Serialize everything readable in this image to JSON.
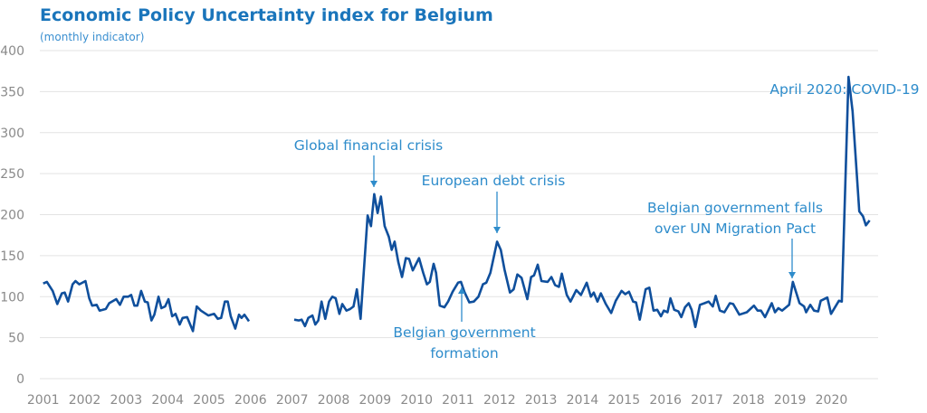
{
  "chart_data": {
    "type": "line",
    "title": "Economic Policy Uncertainty index for Belgium",
    "subtitle": "(monthly indicator)",
    "xlabel": "",
    "ylabel": "",
    "ylim": [
      0,
      400
    ],
    "xlim": [
      2001,
      2020.92
    ],
    "yticks": [
      "0",
      "50",
      "100",
      "150",
      "200",
      "250",
      "300",
      "350",
      "400"
    ],
    "xticks": [
      "2001",
      "2002",
      "2003",
      "2004",
      "2005",
      "2006",
      "2007",
      "2008",
      "2009",
      "2010",
      "2011",
      "2012",
      "2013",
      "2014",
      "2015",
      "2016",
      "2017",
      "2018",
      "2019",
      "2020"
    ],
    "grid": true,
    "line_color": "#0f4f9c",
    "annotation_color": "#2e8ccb",
    "annotations": [
      {
        "lines": [
          "Global financial crisis"
        ]
      },
      {
        "lines": [
          "European debt crisis"
        ]
      },
      {
        "lines": [
          "Belgian government",
          "formation"
        ]
      },
      {
        "lines": [
          "Belgian government falls",
          "over UN Migration Pact"
        ]
      },
      {
        "lines": [
          "April 2020: COVID-19"
        ]
      }
    ],
    "series": [
      {
        "segments": [
          [
            [
              2001.0,
              116
            ],
            [
              2001.09,
              118
            ],
            [
              2001.23,
              107
            ],
            [
              2001.34,
              91
            ],
            [
              2001.45,
              104
            ],
            [
              2001.52,
              105
            ],
            [
              2001.6,
              94
            ],
            [
              2001.71,
              115
            ],
            [
              2001.78,
              119
            ],
            [
              2001.87,
              115
            ],
            [
              2002.02,
              119
            ],
            [
              2002.11,
              98
            ],
            [
              2002.18,
              89
            ],
            [
              2002.29,
              90
            ],
            [
              2002.36,
              83
            ],
            [
              2002.51,
              85
            ],
            [
              2002.59,
              92
            ],
            [
              2002.76,
              97
            ],
            [
              2002.85,
              90
            ],
            [
              2002.94,
              100
            ],
            [
              2003.05,
              100
            ],
            [
              2003.12,
              102
            ],
            [
              2003.2,
              89
            ],
            [
              2003.27,
              89
            ],
            [
              2003.36,
              107
            ],
            [
              2003.45,
              94
            ],
            [
              2003.52,
              93
            ],
            [
              2003.61,
              71
            ],
            [
              2003.68,
              78
            ],
            [
              2003.78,
              100
            ],
            [
              2003.85,
              86
            ],
            [
              2003.94,
              88
            ],
            [
              2004.02,
              97
            ],
            [
              2004.11,
              76
            ],
            [
              2004.19,
              79
            ],
            [
              2004.29,
              66
            ],
            [
              2004.36,
              74
            ],
            [
              2004.47,
              75
            ],
            [
              2004.61,
              58
            ],
            [
              2004.7,
              88
            ],
            [
              2004.8,
              83
            ],
            [
              2004.98,
              77
            ],
            [
              2005.12,
              79
            ],
            [
              2005.21,
              73
            ],
            [
              2005.29,
              74
            ],
            [
              2005.38,
              94
            ],
            [
              2005.45,
              94
            ],
            [
              2005.52,
              76
            ],
            [
              2005.63,
              61
            ],
            [
              2005.72,
              78
            ],
            [
              2005.78,
              74
            ],
            [
              2005.85,
              78
            ],
            [
              2005.96,
              70
            ]
          ],
          [
            [
              2007.05,
              72
            ],
            [
              2007.16,
              71
            ],
            [
              2007.23,
              72
            ],
            [
              2007.31,
              64
            ],
            [
              2007.39,
              74
            ],
            [
              2007.49,
              77
            ],
            [
              2007.56,
              66
            ],
            [
              2007.63,
              71
            ],
            [
              2007.71,
              94
            ],
            [
              2007.8,
              73
            ],
            [
              2007.89,
              94
            ],
            [
              2007.97,
              100
            ],
            [
              2008.05,
              98
            ],
            [
              2008.14,
              79
            ],
            [
              2008.21,
              91
            ],
            [
              2008.31,
              83
            ],
            [
              2008.4,
              85
            ],
            [
              2008.48,
              88
            ],
            [
              2008.56,
              109
            ],
            [
              2008.65,
              73
            ],
            [
              2008.82,
              199
            ],
            [
              2008.9,
              186
            ],
            [
              2008.98,
              225
            ],
            [
              2009.06,
              202
            ],
            [
              2009.14,
              222
            ],
            [
              2009.23,
              186
            ],
            [
              2009.33,
              173
            ],
            [
              2009.4,
              157
            ],
            [
              2009.47,
              167
            ],
            [
              2009.56,
              142
            ],
            [
              2009.65,
              124
            ],
            [
              2009.74,
              147
            ],
            [
              2009.82,
              146
            ],
            [
              2009.91,
              132
            ],
            [
              2010.06,
              147
            ],
            [
              2010.16,
              129
            ],
            [
              2010.25,
              115
            ],
            [
              2010.32,
              118
            ],
            [
              2010.41,
              140
            ],
            [
              2010.47,
              129
            ],
            [
              2010.56,
              89
            ],
            [
              2010.67,
              87
            ],
            [
              2010.76,
              94
            ],
            [
              2010.87,
              106
            ],
            [
              2011.0,
              117
            ],
            [
              2011.07,
              118
            ],
            [
              2011.15,
              106
            ],
            [
              2011.27,
              93
            ],
            [
              2011.38,
              94
            ],
            [
              2011.49,
              100
            ],
            [
              2011.6,
              115
            ],
            [
              2011.68,
              117
            ],
            [
              2011.78,
              129
            ],
            [
              2011.94,
              167
            ],
            [
              2012.03,
              157
            ],
            [
              2012.12,
              133
            ],
            [
              2012.25,
              105
            ],
            [
              2012.34,
              109
            ],
            [
              2012.43,
              127
            ],
            [
              2012.53,
              123
            ],
            [
              2012.67,
              97
            ],
            [
              2012.76,
              124
            ],
            [
              2012.83,
              126
            ],
            [
              2012.92,
              139
            ],
            [
              2013.01,
              119
            ],
            [
              2013.16,
              118
            ],
            [
              2013.25,
              124
            ],
            [
              2013.34,
              114
            ],
            [
              2013.43,
              112
            ],
            [
              2013.5,
              128
            ],
            [
              2013.62,
              102
            ],
            [
              2013.71,
              94
            ],
            [
              2013.85,
              108
            ],
            [
              2013.96,
              102
            ],
            [
              2014.1,
              117
            ],
            [
              2014.2,
              100
            ],
            [
              2014.27,
              105
            ],
            [
              2014.36,
              94
            ],
            [
              2014.44,
              104
            ],
            [
              2014.56,
              91
            ],
            [
              2014.69,
              80
            ],
            [
              2014.8,
              95
            ],
            [
              2014.94,
              107
            ],
            [
              2015.03,
              103
            ],
            [
              2015.12,
              106
            ],
            [
              2015.22,
              94
            ],
            [
              2015.29,
              93
            ],
            [
              2015.38,
              72
            ],
            [
              2015.52,
              109
            ],
            [
              2015.61,
              111
            ],
            [
              2015.71,
              83
            ],
            [
              2015.8,
              84
            ],
            [
              2015.89,
              76
            ],
            [
              2015.96,
              83
            ],
            [
              2016.05,
              81
            ],
            [
              2016.12,
              98
            ],
            [
              2016.21,
              84
            ],
            [
              2016.31,
              82
            ],
            [
              2016.38,
              75
            ],
            [
              2016.47,
              87
            ],
            [
              2016.56,
              92
            ],
            [
              2016.63,
              84
            ],
            [
              2016.72,
              63
            ],
            [
              2016.83,
              90
            ],
            [
              2016.94,
              92
            ],
            [
              2017.04,
              94
            ],
            [
              2017.14,
              88
            ],
            [
              2017.21,
              101
            ],
            [
              2017.31,
              83
            ],
            [
              2017.42,
              81
            ],
            [
              2017.55,
              92
            ],
            [
              2017.63,
              91
            ],
            [
              2017.78,
              78
            ],
            [
              2017.96,
              81
            ],
            [
              2018.13,
              89
            ],
            [
              2018.22,
              83
            ],
            [
              2018.3,
              83
            ],
            [
              2018.4,
              75
            ],
            [
              2018.56,
              92
            ],
            [
              2018.64,
              81
            ],
            [
              2018.72,
              86
            ],
            [
              2018.81,
              83
            ],
            [
              2018.98,
              90
            ],
            [
              2019.07,
              118
            ],
            [
              2019.23,
              92
            ],
            [
              2019.34,
              88
            ],
            [
              2019.39,
              81
            ],
            [
              2019.49,
              90
            ],
            [
              2019.58,
              83
            ],
            [
              2019.68,
              82
            ],
            [
              2019.74,
              95
            ],
            [
              2019.9,
              99
            ],
            [
              2019.99,
              79
            ],
            [
              2020.18,
              95
            ],
            [
              2020.25,
              94
            ],
            [
              2020.41,
              368
            ],
            [
              2020.51,
              326
            ],
            [
              2020.67,
              204
            ],
            [
              2020.76,
              198
            ],
            [
              2020.83,
              187
            ],
            [
              2020.92,
              193
            ]
          ]
        ]
      }
    ]
  }
}
